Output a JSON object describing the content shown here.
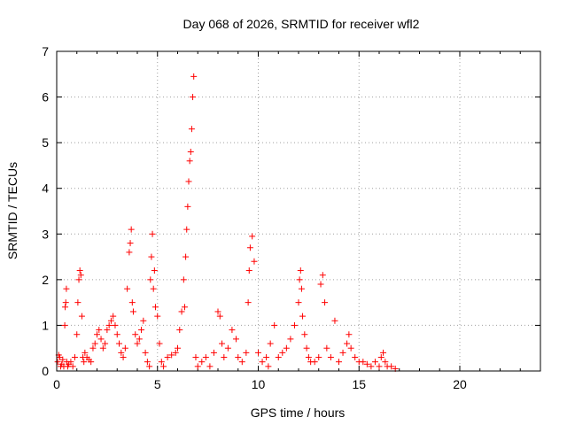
{
  "chart_data": {
    "type": "scatter",
    "title": "Day 068 of 2026, SRMTID for receiver wfl2",
    "xlabel": "GPS time / hours",
    "ylabel": "SRMTID / TECUs",
    "xlim": [
      0,
      24
    ],
    "ylim": [
      0,
      7
    ],
    "xticks": [
      0,
      5,
      10,
      15,
      20
    ],
    "yticks": [
      0,
      1,
      2,
      3,
      4,
      5,
      6,
      7
    ],
    "grid": true,
    "marker": "+",
    "color": "#ff0000",
    "series": [
      {
        "name": "SRMTID",
        "x": [
          0.05,
          0.1,
          0.15,
          0.2,
          0.25,
          0.3,
          0.35,
          0.4,
          0.42,
          0.45,
          0.48,
          0.5,
          0.55,
          0.6,
          0.7,
          0.8,
          0.9,
          1.0,
          1.05,
          1.1,
          1.15,
          1.2,
          1.25,
          1.3,
          1.35,
          1.4,
          1.5,
          1.6,
          1.7,
          1.8,
          1.9,
          2.0,
          2.1,
          2.2,
          2.3,
          2.4,
          2.5,
          2.6,
          2.7,
          2.8,
          2.9,
          3.0,
          3.1,
          3.2,
          3.3,
          3.4,
          3.5,
          3.6,
          3.65,
          3.7,
          3.75,
          3.8,
          3.9,
          4.0,
          4.1,
          4.2,
          4.3,
          4.4,
          4.5,
          4.6,
          4.65,
          4.7,
          4.75,
          4.8,
          4.85,
          4.9,
          5.0,
          5.1,
          5.2,
          5.3,
          5.5,
          5.7,
          5.9,
          6.0,
          6.1,
          6.2,
          6.3,
          6.35,
          6.4,
          6.45,
          6.5,
          6.55,
          6.6,
          6.65,
          6.7,
          6.75,
          6.8,
          6.9,
          7.0,
          7.2,
          7.4,
          7.6,
          7.8,
          8.0,
          8.1,
          8.2,
          8.3,
          8.5,
          8.7,
          8.9,
          9.0,
          9.2,
          9.4,
          9.5,
          9.55,
          9.6,
          9.7,
          9.8,
          10.0,
          10.2,
          10.4,
          10.5,
          10.6,
          10.8,
          11.0,
          11.2,
          11.4,
          11.6,
          11.8,
          12.0,
          12.05,
          12.1,
          12.15,
          12.2,
          12.3,
          12.4,
          12.5,
          12.6,
          12.8,
          13.0,
          13.1,
          13.2,
          13.3,
          13.4,
          13.6,
          13.8,
          14.0,
          14.2,
          14.4,
          14.5,
          14.6,
          14.8,
          15.0,
          15.2,
          15.4,
          15.6,
          15.8,
          16.0,
          16.1,
          16.2,
          16.3,
          16.4,
          16.6,
          16.8
        ],
        "y": [
          0.2,
          0.35,
          0.3,
          0.1,
          0.15,
          0.25,
          0.1,
          1.0,
          1.4,
          1.5,
          1.8,
          0.2,
          0.1,
          0.15,
          0.2,
          0.1,
          0.3,
          0.8,
          1.5,
          2.0,
          2.2,
          2.1,
          1.2,
          0.3,
          0.2,
          0.4,
          0.3,
          0.25,
          0.2,
          0.5,
          0.6,
          0.8,
          0.9,
          0.7,
          0.5,
          0.6,
          0.9,
          1.0,
          1.1,
          1.2,
          1.0,
          0.8,
          0.6,
          0.4,
          0.3,
          0.5,
          1.8,
          2.6,
          2.8,
          3.1,
          1.5,
          1.3,
          0.8,
          0.6,
          0.7,
          0.9,
          1.1,
          0.4,
          0.2,
          0.1,
          2.0,
          2.5,
          3.0,
          1.8,
          2.2,
          1.4,
          1.2,
          0.6,
          0.2,
          0.1,
          0.3,
          0.35,
          0.4,
          0.5,
          0.9,
          1.3,
          2.0,
          1.4,
          2.5,
          3.1,
          3.6,
          4.15,
          4.6,
          4.8,
          5.3,
          6.0,
          6.45,
          0.3,
          0.1,
          0.2,
          0.3,
          0.1,
          0.4,
          1.3,
          1.2,
          0.6,
          0.3,
          0.5,
          0.9,
          0.7,
          0.3,
          0.2,
          0.4,
          1.5,
          2.2,
          2.7,
          2.95,
          2.4,
          0.4,
          0.2,
          0.3,
          0.1,
          0.6,
          1.0,
          0.3,
          0.4,
          0.5,
          0.7,
          1.0,
          1.5,
          2.0,
          2.2,
          1.8,
          1.2,
          0.8,
          0.5,
          0.3,
          0.2,
          0.2,
          0.3,
          1.9,
          2.1,
          1.5,
          0.5,
          0.3,
          1.1,
          0.2,
          0.4,
          0.6,
          0.8,
          0.5,
          0.3,
          0.2,
          0.2,
          0.15,
          0.1,
          0.2,
          0.1,
          0.3,
          0.4,
          0.2,
          0.1,
          0.1,
          0.05
        ]
      }
    ]
  }
}
